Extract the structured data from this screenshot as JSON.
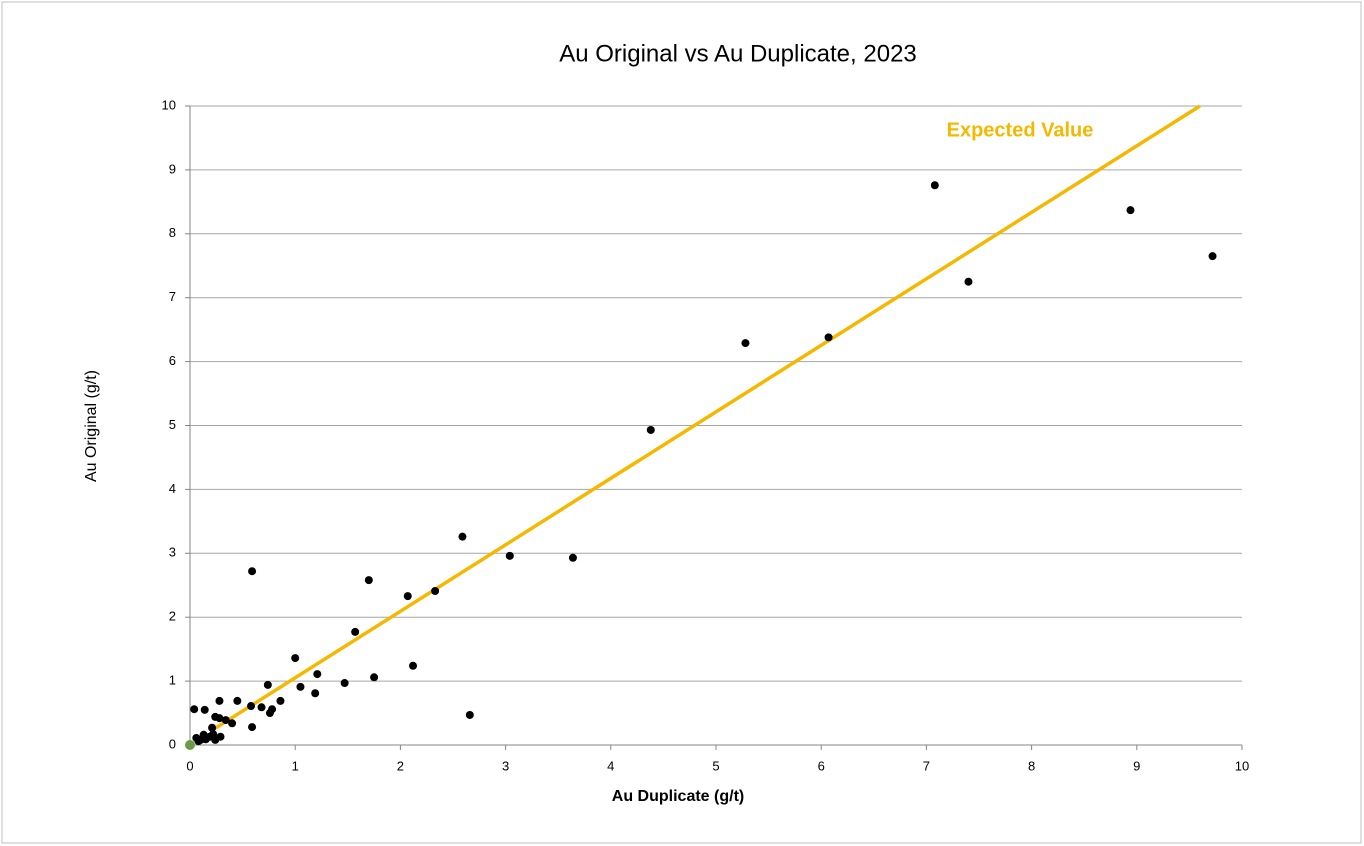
{
  "chart_data": {
    "type": "scatter",
    "title": "Au Original vs Au Duplicate, 2023",
    "x_label": "Au  Duplicate (g/t)",
    "y_label": "Au Original (g/t)",
    "xlim": [
      0,
      10
    ],
    "ylim": [
      0,
      10
    ],
    "xticks": [
      0,
      1,
      2,
      3,
      4,
      5,
      6,
      7,
      8,
      9,
      10
    ],
    "yticks": [
      0,
      1,
      2,
      3,
      4,
      5,
      6,
      7,
      8,
      9,
      10
    ],
    "grid": true,
    "series": [
      {
        "color": "#000000",
        "x": [
          7.08,
          8.94,
          9.72,
          7.4,
          5.28,
          6.07,
          4.38,
          2.59,
          3.04,
          3.64,
          2.33,
          2.07,
          1.7,
          0.59,
          1.57,
          2.12,
          1.75,
          1.47,
          2.66,
          1.0,
          1.21,
          1.05,
          1.19,
          0.74,
          0.86,
          0.78,
          0.76,
          0.68,
          0.58,
          0.59,
          0.45,
          0.28,
          0.04,
          0.14,
          0.34,
          0.4,
          0.24,
          0.28,
          0.21,
          0.22,
          0.19,
          0.15,
          0.1,
          0.06,
          0.08,
          0.29,
          0.24,
          0.13
        ],
        "y": [
          8.76,
          8.37,
          7.65,
          7.25,
          6.29,
          6.38,
          4.93,
          3.26,
          2.96,
          2.93,
          2.41,
          2.33,
          2.58,
          2.72,
          1.77,
          1.24,
          1.06,
          0.97,
          0.47,
          1.36,
          1.11,
          0.91,
          0.81,
          0.94,
          0.69,
          0.56,
          0.5,
          0.59,
          0.61,
          0.28,
          0.69,
          0.69,
          0.56,
          0.55,
          0.39,
          0.34,
          0.44,
          0.42,
          0.27,
          0.17,
          0.13,
          0.09,
          0.08,
          0.11,
          0.06,
          0.13,
          0.08,
          0.16
        ]
      },
      {
        "color": "#6a9a4a",
        "x": [
          0
        ],
        "y": [
          0
        ]
      }
    ],
    "reference_line": {
      "label": "Expected Value",
      "color": "#f5b800",
      "x": [
        0.2,
        9.6
      ],
      "y": [
        0.22,
        10
      ]
    }
  }
}
